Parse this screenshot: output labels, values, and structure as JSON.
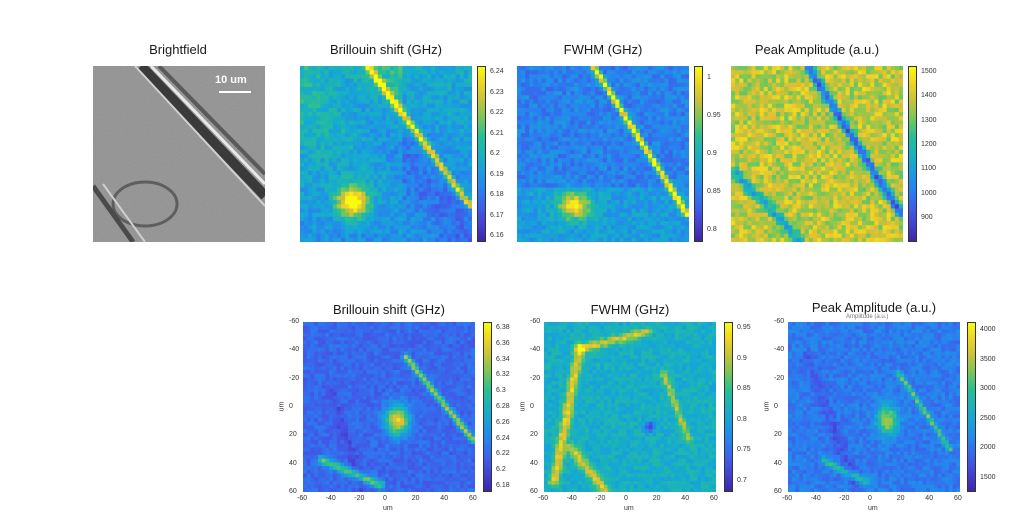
{
  "top_row": {
    "brightfield": {
      "title": "Brightfield",
      "scale_label": "10 um"
    },
    "brillouin": {
      "title": "Brillouin shift (GHz)",
      "colorbar_ticks": [
        "6.24",
        "6.23",
        "6.22",
        "6.21",
        "6.2",
        "6.19",
        "6.18",
        "6.17",
        "6.16"
      ]
    },
    "fwhm": {
      "title": "FWHM (GHz)",
      "colorbar_ticks": [
        "1",
        "0.95",
        "0.9",
        "0.85",
        "0.8"
      ]
    },
    "amplitude": {
      "title": "Peak Amplitude (a.u.)",
      "colorbar_ticks": [
        "1500",
        "1400",
        "1300",
        "1200",
        "1100",
        "1000",
        "900"
      ]
    }
  },
  "bottom_row": {
    "brillouin": {
      "title": "Brillouin shift (GHz)",
      "colorbar_ticks": [
        "6.38",
        "6.36",
        "6.34",
        "6.32",
        "6.3",
        "6.28",
        "6.26",
        "6.24",
        "6.22",
        "6.2",
        "6.18"
      ]
    },
    "fwhm": {
      "title": "FWHM (GHz)",
      "colorbar_ticks": [
        "0.95",
        "0.9",
        "0.85",
        "0.8",
        "0.75",
        "0.7"
      ]
    },
    "amplitude": {
      "title": "Peak Amplitude (a.u.)",
      "faint_label": "Amplitude (a.u.)",
      "colorbar_ticks": [
        "4000",
        "3500",
        "3000",
        "2500",
        "2000",
        "1500"
      ]
    },
    "y_ticks": [
      "-60",
      "-40",
      "-20",
      "0",
      "20",
      "40",
      "60"
    ],
    "x_ticks": [
      "-60",
      "-40",
      "-20",
      "0",
      "20",
      "40",
      "60"
    ],
    "axis_label": "um"
  },
  "colors": {
    "parula_low": "#3e26a8",
    "parula_mid": "#1fb7a0",
    "parula_high": "#f9fb0e"
  }
}
